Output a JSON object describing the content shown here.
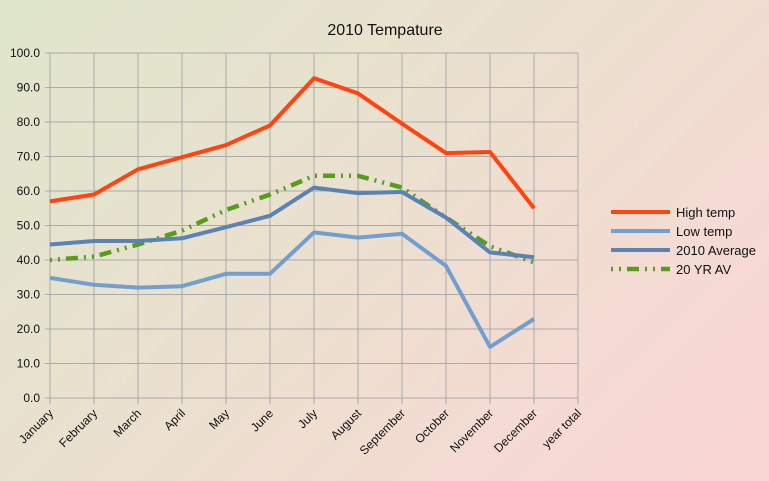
{
  "chart_data": {
    "type": "line",
    "title": "2010 Tempature",
    "xlabel": "",
    "ylabel": "",
    "categories": [
      "January",
      "February",
      "March",
      "April",
      "May",
      "June",
      "July",
      "August",
      "September",
      "October",
      "November",
      "December",
      "year total"
    ],
    "ylim": [
      0,
      100
    ],
    "yticks": [
      "0.0",
      "10.0",
      "20.0",
      "30.0",
      "40.0",
      "50.0",
      "60.0",
      "70.0",
      "80.0",
      "90.0",
      "100.0"
    ],
    "ytick_step": 10,
    "grid": true,
    "legend_position": "right",
    "series": [
      {
        "name": "High temp",
        "color": "#ff4410",
        "style": "solid",
        "values": [
          57.0,
          59.0,
          66.3,
          69.8,
          73.3,
          79.0,
          92.7,
          88.3,
          79.5,
          71.0,
          71.3,
          55.0
        ]
      },
      {
        "name": "Low temp",
        "color": "#729fcf",
        "style": "solid",
        "values": [
          34.8,
          32.8,
          32.0,
          32.4,
          36.0,
          36.0,
          48.0,
          46.5,
          47.6,
          38.3,
          14.8,
          22.9
        ]
      },
      {
        "name": "2010 Average",
        "color": "#5b82b4",
        "style": "solid",
        "values": [
          44.5,
          45.5,
          45.5,
          46.3,
          49.5,
          52.8,
          61.0,
          59.4,
          59.7,
          52.3,
          42.2,
          40.8
        ]
      },
      {
        "name": "20 YR AV",
        "color": "#579d1c",
        "style": "dash-dot-dot",
        "values": [
          40.0,
          41.0,
          44.5,
          48.5,
          54.5,
          59.0,
          64.4,
          64.4,
          61.0,
          52.3,
          44.0,
          39.3
        ]
      }
    ]
  }
}
